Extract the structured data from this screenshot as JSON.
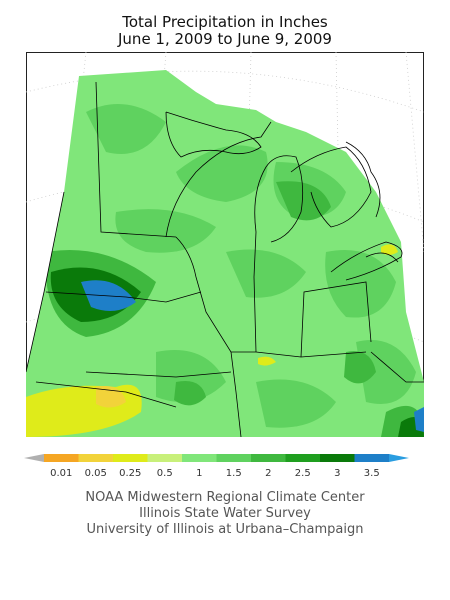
{
  "title": {
    "line1": "Total Precipitation in Inches",
    "line2": "June 1, 2009 to June 9, 2009"
  },
  "legend": {
    "items": [
      {
        "label": "0.01",
        "color": "#f5a623"
      },
      {
        "label": "0.05",
        "color": "#f2d33a"
      },
      {
        "label": "0.25",
        "color": "#dfeb1a"
      },
      {
        "label": "0.5",
        "color": "#c8f07a"
      },
      {
        "label": "1",
        "color": "#80e67a"
      },
      {
        "label": "1.5",
        "color": "#5fd25f"
      },
      {
        "label": "2",
        "color": "#3fb83f"
      },
      {
        "label": "2.5",
        "color": "#1f9f1f"
      },
      {
        "label": "3",
        "color": "#0a7a0a"
      },
      {
        "label": "3.5",
        "color": "#1e7fc8"
      }
    ],
    "below_color": "#b0b0b0",
    "above_color": "#2a9de0"
  },
  "credits": {
    "line1": "NOAA Midwestern Regional Climate Center",
    "line2": "Illinois State Water Survey",
    "line3": "University of Illinois at Urbana–Champaign"
  },
  "colors": {
    "base_green": "#80e67a",
    "mid_green": "#5fd25f",
    "dark_green": "#3fb83f",
    "deep_green": "#0a7a0a",
    "blue": "#1e7fc8",
    "yellow": "#dfeb1a",
    "light_yellow": "#f2d33a"
  }
}
